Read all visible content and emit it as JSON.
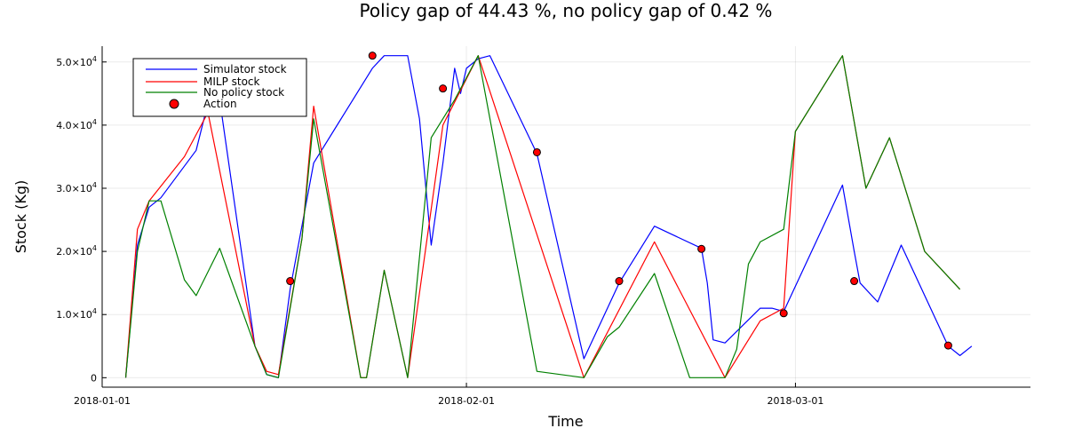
{
  "chart_data": {
    "type": "line",
    "title": "Policy gap of 44.43 %, no policy gap of 0.42 %",
    "xlabel": "Time",
    "ylabel": "Stock (Kg)",
    "xlim": [
      "2018-01-01",
      "2018-03-21"
    ],
    "ylim": [
      -1500,
      52500
    ],
    "x_ticks": [
      "2018-01-01",
      "2018-02-01",
      "2018-03-01"
    ],
    "y_ticks": [
      {
        "value": 0,
        "mantissa": "0",
        "exponent": ""
      },
      {
        "value": 10000,
        "mantissa": "1.0×10",
        "exponent": "4"
      },
      {
        "value": 20000,
        "mantissa": "2.0×10",
        "exponent": "4"
      },
      {
        "value": 30000,
        "mantissa": "3.0×10",
        "exponent": "4"
      },
      {
        "value": 40000,
        "mantissa": "4.0×10",
        "exponent": "4"
      },
      {
        "value": 50000,
        "mantissa": "5.0×10",
        "exponent": "4"
      }
    ],
    "grid": true,
    "legend_position": "top-left",
    "series": [
      {
        "name": "Simulator stock",
        "color": "#0000ff",
        "points": [
          [
            "2018-01-03",
            0
          ],
          [
            "2018-01-04",
            21000
          ],
          [
            "2018-01-05",
            27000
          ],
          [
            "2018-01-06",
            28500
          ],
          [
            "2018-01-09",
            36000
          ],
          [
            "2018-01-10",
            43500
          ],
          [
            "2018-01-11",
            44000
          ],
          [
            "2018-01-14",
            5000
          ],
          [
            "2018-01-15",
            500
          ],
          [
            "2018-01-16",
            0
          ],
          [
            "2018-01-17",
            14000
          ],
          [
            "2018-01-19",
            34000
          ],
          [
            "2018-01-24",
            49000
          ],
          [
            "2018-01-25",
            51000
          ],
          [
            "2018-01-27",
            51000
          ],
          [
            "2018-01-28",
            41000
          ],
          [
            "2018-01-29",
            21000
          ],
          [
            "2018-01-30",
            34000
          ],
          [
            "2018-01-31",
            49000
          ],
          [
            "2018-01-31T12:00",
            45000
          ],
          [
            "2018-02-01",
            49000
          ],
          [
            "2018-02-02",
            50500
          ],
          [
            "2018-02-03",
            51000
          ],
          [
            "2018-02-07",
            35500
          ],
          [
            "2018-02-11",
            3000
          ],
          [
            "2018-02-14",
            15000
          ],
          [
            "2018-02-17",
            24000
          ],
          [
            "2018-02-21",
            20500
          ],
          [
            "2018-02-21T12:00",
            15000
          ],
          [
            "2018-02-22",
            6000
          ],
          [
            "2018-02-23",
            5500
          ],
          [
            "2018-02-26",
            11000
          ],
          [
            "2018-02-27",
            11000
          ],
          [
            "2018-02-28",
            10500
          ],
          [
            "2018-03-05",
            30500
          ],
          [
            "2018-03-06",
            20000
          ],
          [
            "2018-03-06T12:00",
            15000
          ],
          [
            "2018-03-08",
            12000
          ],
          [
            "2018-03-10",
            21000
          ],
          [
            "2018-03-14",
            5000
          ],
          [
            "2018-03-15",
            3500
          ],
          [
            "2018-03-16",
            5000
          ]
        ]
      },
      {
        "name": "MILP stock",
        "color": "#ff0000",
        "points": [
          [
            "2018-01-03",
            0
          ],
          [
            "2018-01-04",
            23500
          ],
          [
            "2018-01-05",
            28000
          ],
          [
            "2018-01-08",
            35000
          ],
          [
            "2018-01-10",
            42000
          ],
          [
            "2018-01-14",
            5000
          ],
          [
            "2018-01-15",
            1000
          ],
          [
            "2018-01-16",
            500
          ],
          [
            "2018-01-18",
            22000
          ],
          [
            "2018-01-19",
            43000
          ],
          [
            "2018-01-23",
            0
          ],
          [
            "2018-01-23T12:00",
            0
          ],
          [
            "2018-01-25",
            17000
          ],
          [
            "2018-01-27",
            0
          ],
          [
            "2018-01-30",
            40000
          ],
          [
            "2018-02-02",
            51000
          ],
          [
            "2018-02-11",
            0
          ],
          [
            "2018-02-17",
            21500
          ],
          [
            "2018-02-23",
            0
          ],
          [
            "2018-02-26",
            9000
          ],
          [
            "2018-02-28",
            11000
          ],
          [
            "2018-03-01",
            39000
          ],
          [
            "2018-03-05",
            51000
          ],
          [
            "2018-03-07",
            30000
          ],
          [
            "2018-03-09",
            38000
          ],
          [
            "2018-03-12",
            20000
          ],
          [
            "2018-03-15",
            14000
          ]
        ]
      },
      {
        "name": "No policy stock",
        "color": "#008000",
        "points": [
          [
            "2018-01-03",
            0
          ],
          [
            "2018-01-04",
            20000
          ],
          [
            "2018-01-05",
            28000
          ],
          [
            "2018-01-06",
            28000
          ],
          [
            "2018-01-08",
            15500
          ],
          [
            "2018-01-09",
            13000
          ],
          [
            "2018-01-11",
            20500
          ],
          [
            "2018-01-14",
            5000
          ],
          [
            "2018-01-15",
            500
          ],
          [
            "2018-01-16",
            0
          ],
          [
            "2018-01-18",
            22000
          ],
          [
            "2018-01-19",
            41000
          ],
          [
            "2018-01-23",
            0
          ],
          [
            "2018-01-23T12:00",
            0
          ],
          [
            "2018-01-25",
            17000
          ],
          [
            "2018-01-27",
            0
          ],
          [
            "2018-01-29",
            38000
          ],
          [
            "2018-01-31",
            44000
          ],
          [
            "2018-02-02",
            51000
          ],
          [
            "2018-02-07",
            1000
          ],
          [
            "2018-02-11",
            0
          ],
          [
            "2018-02-13",
            6500
          ],
          [
            "2018-02-14",
            8000
          ],
          [
            "2018-02-17",
            16500
          ],
          [
            "2018-02-20",
            0
          ],
          [
            "2018-02-23",
            0
          ],
          [
            "2018-02-24",
            4500
          ],
          [
            "2018-02-25",
            18000
          ],
          [
            "2018-02-26",
            21500
          ],
          [
            "2018-02-28",
            23500
          ],
          [
            "2018-03-01",
            39000
          ],
          [
            "2018-03-05",
            51000
          ],
          [
            "2018-03-07",
            30000
          ],
          [
            "2018-03-09",
            38000
          ],
          [
            "2018-03-12",
            20000
          ],
          [
            "2018-03-15",
            14000
          ]
        ]
      }
    ],
    "actions": {
      "name": "Action",
      "color": "#ff0000",
      "points": [
        [
          "2018-01-17",
          15300
        ],
        [
          "2018-01-24",
          51000
        ],
        [
          "2018-01-30",
          45800
        ],
        [
          "2018-02-07",
          35700
        ],
        [
          "2018-02-14",
          15300
        ],
        [
          "2018-02-21",
          20400
        ],
        [
          "2018-02-28",
          10200
        ],
        [
          "2018-03-06",
          15300
        ],
        [
          "2018-03-14",
          5100
        ]
      ]
    }
  }
}
